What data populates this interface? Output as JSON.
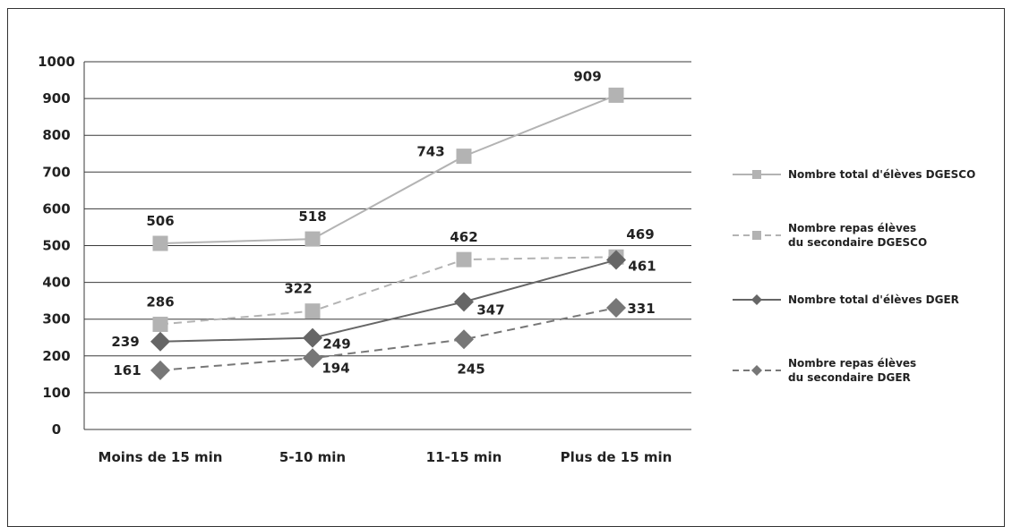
{
  "chart_data": {
    "type": "line",
    "categories": [
      "Moins de 15 min",
      "5-10 min",
      "11-15 min",
      "Plus de 15 min"
    ],
    "ylim": [
      0,
      1000
    ],
    "yticks": [
      0,
      100,
      200,
      300,
      400,
      500,
      600,
      700,
      800,
      900,
      1000
    ],
    "grid": true,
    "legend_position": "right",
    "series": [
      {
        "name": "Nombre total d'élèves DGESCO",
        "legend_lines": [
          "Nombre total d'élèves DGESCO"
        ],
        "values": [
          506,
          518,
          743,
          909
        ],
        "labels": [
          "506",
          "518",
          "743",
          "909"
        ],
        "color": "#b3b3b3",
        "dash": "none",
        "marker": "square"
      },
      {
        "name": "Nombre repas élèves du secondaire DGESCO",
        "legend_lines": [
          "Nombre repas élèves",
          "du secondaire DGESCO"
        ],
        "values": [
          286,
          322,
          462,
          469
        ],
        "labels": [
          "286",
          "322",
          "462",
          "469"
        ],
        "color": "#b3b3b3",
        "dash": "dashed",
        "marker": "square"
      },
      {
        "name": "Nombre total d'élèves DGER",
        "legend_lines": [
          "Nombre total d'élèves DGER"
        ],
        "values": [
          239,
          249,
          347,
          461
        ],
        "labels": [
          "239",
          "249",
          "347",
          "461"
        ],
        "color": "#666666",
        "dash": "none",
        "marker": "diamond"
      },
      {
        "name": "Nombre repas élèves du secondaire DGER",
        "legend_lines": [
          "Nombre repas élèves",
          "du secondaire DGER"
        ],
        "values": [
          161,
          194,
          245,
          331
        ],
        "labels": [
          "161",
          "194",
          "245",
          "331"
        ],
        "color": "#777777",
        "dash": "dashed",
        "marker": "diamond"
      }
    ]
  }
}
